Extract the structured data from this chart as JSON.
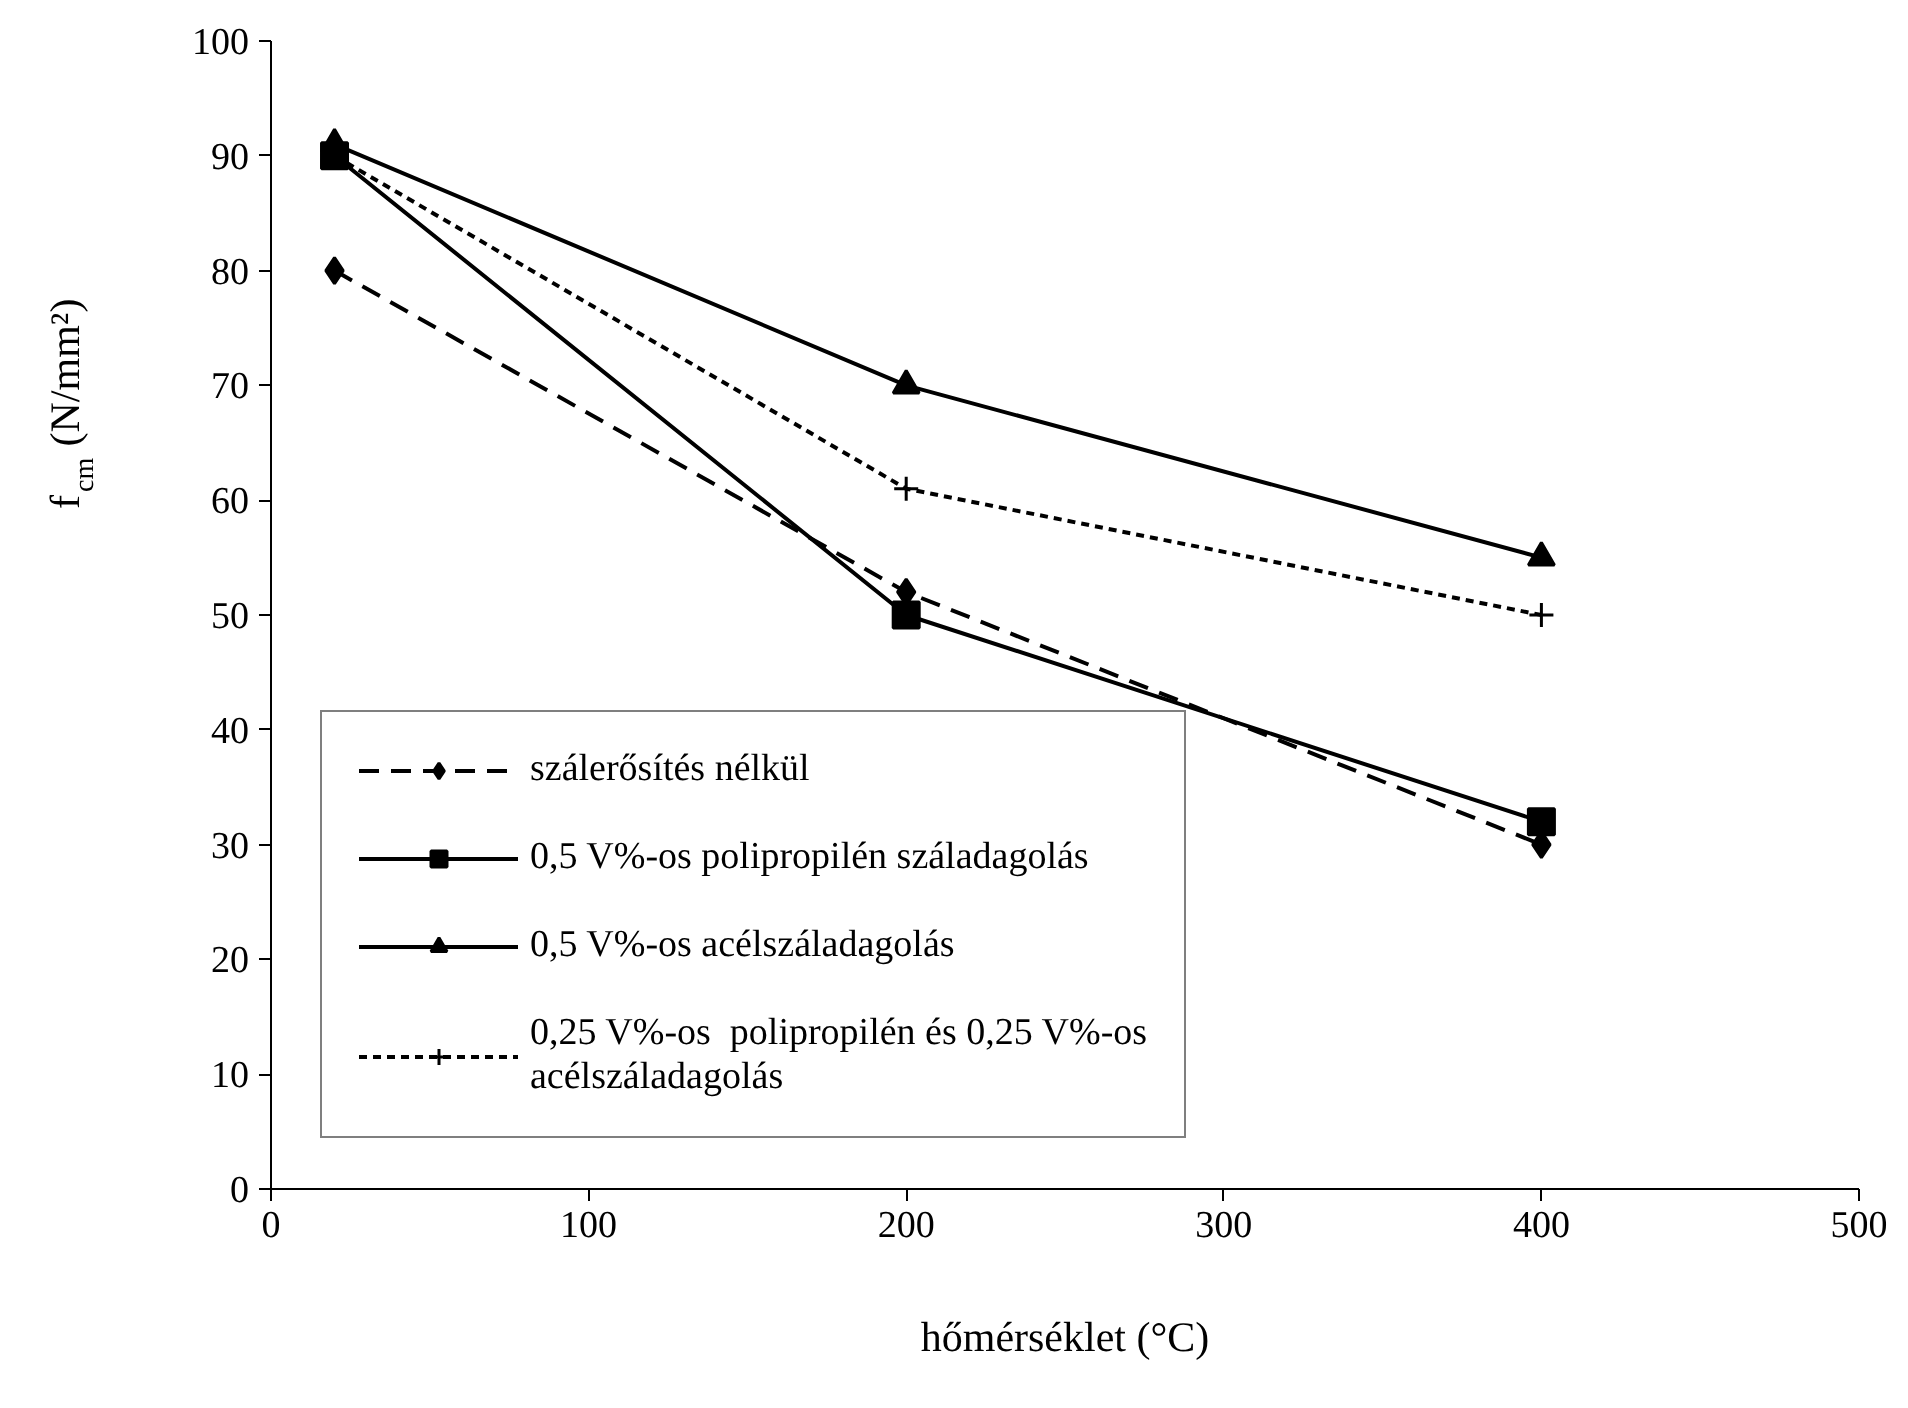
{
  "chart_data": {
    "type": "line",
    "xlabel": "hőmérséklet (°C)",
    "ylabel": "f$_{cm}$ (N/mm²)",
    "x": [
      20,
      200,
      400
    ],
    "series": [
      {
        "name": "szálerősítés nélkül",
        "color": "#000000",
        "values": [
          80,
          52,
          30
        ],
        "marker": "diamond",
        "line_style": "dashed"
      },
      {
        "name": "0,5 V%-os polipropilén száladagolás",
        "color": "#000000",
        "values": [
          90,
          50,
          32
        ],
        "marker": "square",
        "line_style": "solid"
      },
      {
        "name": "0,5 V%-os acélszáladagolás",
        "color": "#000000",
        "values": [
          91,
          70,
          55
        ],
        "marker": "triangle",
        "line_style": "solid"
      },
      {
        "name": "0,25 V%-os  polipropilén és 0,25 V%-os acélszáladagolás",
        "color": "#000000",
        "values": [
          90,
          61,
          50
        ],
        "marker": "cross",
        "line_style": "dotted"
      }
    ],
    "xlim": [
      0,
      500
    ],
    "xticks": [
      0,
      100,
      200,
      300,
      400,
      500
    ],
    "ylim": [
      0,
      100
    ],
    "yticks": [
      0,
      10,
      20,
      30,
      40,
      50,
      60,
      70,
      80,
      90,
      100
    ],
    "grid": false,
    "legend": "bottom left"
  }
}
